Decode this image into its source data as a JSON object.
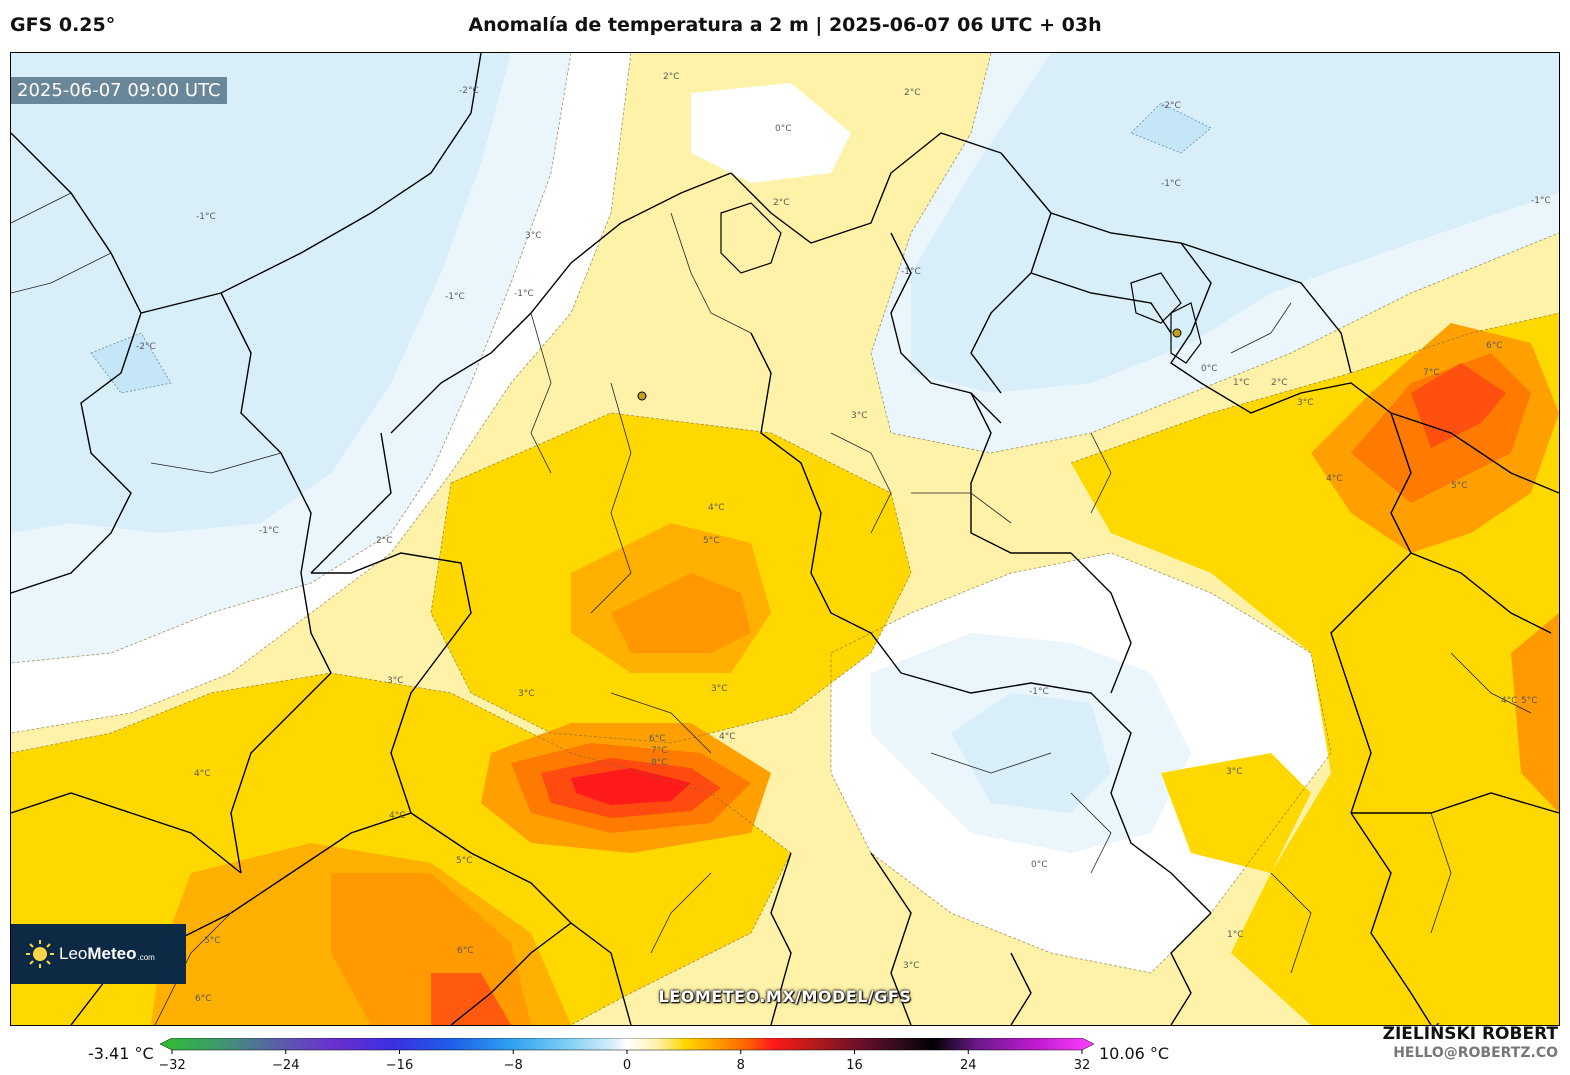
{
  "header": {
    "model": "GFS 0.25°",
    "title": "Anomalía de temperatura a 2 m | 2025-06-07 06 UTC + 03h"
  },
  "map": {
    "valid_time": "2025-06-07 09:00 UTC",
    "contour_labels": [
      "-2°C",
      "-1°C",
      "0°C",
      "1°C",
      "2°C",
      "3°C",
      "4°C",
      "5°C",
      "6°C",
      "7°C",
      "8°C"
    ],
    "watermark": "LEOMETEO.MX/MODEL/GFS"
  },
  "logo": {
    "name_light": "Leo",
    "name_bold": "Meteo",
    "suffix": ".com"
  },
  "colorbar": {
    "min_value": "-3.41 °C",
    "max_value": "10.06 °C",
    "ticks": [
      "−32",
      "−24",
      "−16",
      "−8",
      "0",
      "8",
      "16",
      "24",
      "32"
    ],
    "tick_values": [
      -32,
      -24,
      -16,
      -8,
      0,
      8,
      16,
      24,
      32
    ],
    "range": [
      -32,
      32
    ],
    "gradient_stops": [
      {
        "value": -32,
        "color": "#2fbf2f"
      },
      {
        "value": -28,
        "color": "#3d9a6e"
      },
      {
        "value": -24,
        "color": "#5a5fa8"
      },
      {
        "value": -20,
        "color": "#6a2fd0"
      },
      {
        "value": -16,
        "color": "#3b2fe0"
      },
      {
        "value": -12,
        "color": "#1e5fe8"
      },
      {
        "value": -8,
        "color": "#2f9ff0"
      },
      {
        "value": -4,
        "color": "#7fd0f5"
      },
      {
        "value": -1,
        "color": "#d6eefa"
      },
      {
        "value": 0,
        "color": "#ffffff"
      },
      {
        "value": 2,
        "color": "#fff2b0"
      },
      {
        "value": 4,
        "color": "#ffd800"
      },
      {
        "value": 6,
        "color": "#ffa000"
      },
      {
        "value": 8,
        "color": "#ff6a00"
      },
      {
        "value": 10,
        "color": "#ff1a1a"
      },
      {
        "value": 13,
        "color": "#b01a1a"
      },
      {
        "value": 16,
        "color": "#6a0f2a"
      },
      {
        "value": 19,
        "color": "#2a0a1a"
      },
      {
        "value": 21,
        "color": "#000000"
      },
      {
        "value": 24,
        "color": "#6a1a8a"
      },
      {
        "value": 28,
        "color": "#c01ad0"
      },
      {
        "value": 32,
        "color": "#ff40ff"
      }
    ]
  },
  "author": {
    "name": "ZIELIŃSKI ROBERT",
    "email": "HELLO@ROBERTZ.CO"
  }
}
